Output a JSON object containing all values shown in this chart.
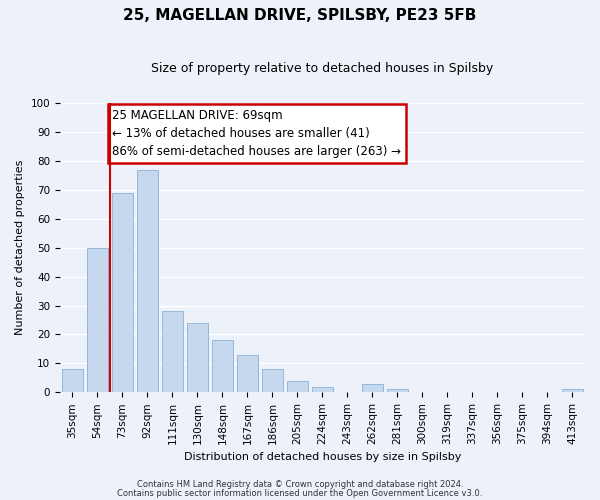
{
  "title": "25, MAGELLAN DRIVE, SPILSBY, PE23 5FB",
  "subtitle": "Size of property relative to detached houses in Spilsby",
  "xlabel": "Distribution of detached houses by size in Spilsby",
  "ylabel": "Number of detached properties",
  "bar_labels": [
    "35sqm",
    "54sqm",
    "73sqm",
    "92sqm",
    "111sqm",
    "130sqm",
    "148sqm",
    "167sqm",
    "186sqm",
    "205sqm",
    "224sqm",
    "243sqm",
    "262sqm",
    "281sqm",
    "300sqm",
    "319sqm",
    "337sqm",
    "356sqm",
    "375sqm",
    "394sqm",
    "413sqm"
  ],
  "bar_values": [
    8,
    50,
    69,
    77,
    28,
    24,
    18,
    13,
    8,
    4,
    2,
    0,
    3,
    1,
    0,
    0,
    0,
    0,
    0,
    0,
    1
  ],
  "bar_color": "#c5d8ee",
  "bar_edge_color": "#8ab0d4",
  "vline_position": 1.5,
  "vline_color": "#cc0000",
  "ylim": [
    0,
    100
  ],
  "yticks": [
    0,
    10,
    20,
    30,
    40,
    50,
    60,
    70,
    80,
    90,
    100
  ],
  "ann_line1": "25 MAGELLAN DRIVE: 69sqm",
  "ann_line2": "← 13% of detached houses are smaller (41)",
  "ann_line3": "86% of semi-detached houses are larger (263) →",
  "footer_line1": "Contains HM Land Registry data © Crown copyright and database right 2024.",
  "footer_line2": "Contains public sector information licensed under the Open Government Licence v3.0.",
  "background_color": "#edf2fa",
  "plot_bg_color": "#edf2fa",
  "grid_color": "#ffffff",
  "title_fontsize": 11,
  "subtitle_fontsize": 9,
  "ylabel_fontsize": 8,
  "xlabel_fontsize": 8,
  "tick_fontsize": 7.5,
  "ann_fontsize": 8.5,
  "footer_fontsize": 6
}
